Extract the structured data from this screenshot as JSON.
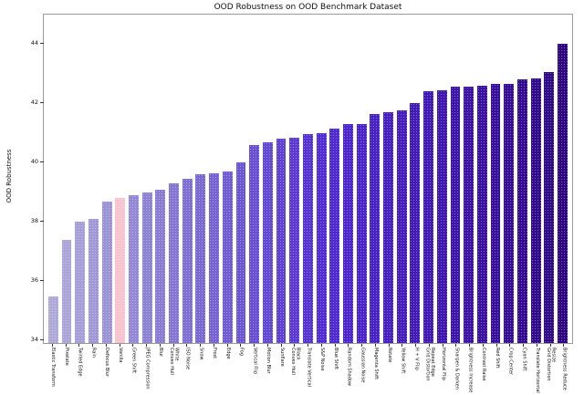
{
  "chart_title": "OOD Robustness on OOD Benchmark Dataset",
  "chart_data": {
    "type": "bar",
    "title": "OOD Robustness on OOD Benchmark Dataset",
    "xlabel": "",
    "ylabel": "OOD Robustness",
    "ylim": [
      33.8,
      45.2
    ],
    "yticks": [
      34,
      36,
      38,
      40,
      42,
      44
    ],
    "grid": false,
    "legend": null,
    "highlight_category": "Vanilla",
    "highlight_color": "#f8c3ce",
    "bar_color_start_hsl": [
      247,
      40,
      76
    ],
    "bar_color_end_hsl": [
      259,
      88,
      27
    ],
    "categories": [
      "Elastic Transform",
      "Pixelate",
      "Twirled Edge",
      "Rain",
      "Defocus Blur",
      "Vanilla",
      "Green Shift",
      "JPEG Compression",
      "Blur",
      "Convex Hull\nWhite",
      "ISO Noise",
      "Snow",
      "Frost",
      "Edge",
      "Fog",
      "Vertical Flip",
      "Motion Blur",
      "Sunflare",
      "Convex Hull\nBlack",
      "Translate Vertical",
      "S&P Noise",
      "Blue Shift",
      "Random Shadow",
      "Gaussian Noise",
      "Magenta Shift",
      "Rotate",
      "Yellow Shift",
      "H + V Flip",
      "Grid Distortion\nRepeat Edge",
      "Horizontal Flip",
      "Sharpen & Darken",
      "Brightness Increase",
      "Contrast Raise",
      "Red Shift",
      "Crop Center",
      "Cyan Shift",
      "Translate Horizontal",
      "Grid Distortion\nResize",
      "Brightness Reduce"
    ],
    "values": [
      35.4,
      37.3,
      37.9,
      38.0,
      38.6,
      38.7,
      38.8,
      38.9,
      39.0,
      39.2,
      39.35,
      39.5,
      39.55,
      39.6,
      39.9,
      40.5,
      40.6,
      40.7,
      40.75,
      40.85,
      40.9,
      41.05,
      41.2,
      41.2,
      41.55,
      41.6,
      41.65,
      41.9,
      42.3,
      42.35,
      42.45,
      42.45,
      42.5,
      42.55,
      42.55,
      42.7,
      42.75,
      42.95,
      43.9
    ]
  }
}
